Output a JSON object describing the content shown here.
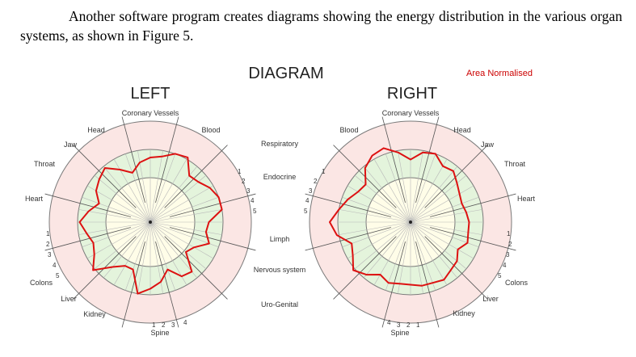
{
  "intro": {
    "text": "Another software program creates diagrams showing the energy distribution in the various organ systems, as shown in Figure 5."
  },
  "figure": {
    "title": "DIAGRAM",
    "note": "Area Normalised",
    "colors": {
      "outer_ring": "#fbe6e4",
      "middle_ring": "#e4f4dc",
      "inner_ring": "#fffde8",
      "grid": "#7a7a7a",
      "trace": "#dd1111",
      "note": "#cc0000"
    },
    "center_labels": [
      "Respiratory",
      "Endocrine",
      "Limph",
      "Nervous system",
      "Uro-Genital"
    ],
    "left": {
      "heading": "LEFT",
      "labels": {
        "top": "Coronary Vessels",
        "head": "Head",
        "blood": "Blood",
        "jaw": "Jaw",
        "throat": "Throat",
        "heart": "Heart",
        "colons": "Colons",
        "liver": "Liver",
        "kidney": "Kidney",
        "spine": "Spine"
      },
      "side_ticks": [
        "1",
        "2",
        "3",
        "4",
        "5"
      ],
      "bottom_ticks": [
        "1",
        "2",
        "3",
        "4"
      ],
      "trace": [
        0.64,
        0.66,
        0.72,
        0.74,
        0.6,
        0.62,
        0.68,
        0.72,
        0.72,
        0.58,
        0.56,
        0.62,
        0.5,
        0.46,
        0.64,
        0.62,
        0.5,
        0.6,
        0.66,
        0.72,
        0.5,
        0.5,
        0.58,
        0.74,
        0.64,
        0.6,
        0.64,
        0.7,
        0.62,
        0.54,
        0.62,
        0.66,
        0.7,
        0.6,
        0.52,
        0.6
      ]
    },
    "right": {
      "heading": "RIGHT",
      "labels": {
        "top": "Coronary Vessels",
        "blood": "Blood",
        "head": "Head",
        "jaw": "Jaw",
        "throat": "Throat",
        "heart": "Heart",
        "colons": "Colons",
        "liver": "Liver",
        "kidney": "Kidney",
        "spine": "Spine"
      },
      "side_ticks": [
        "1",
        "2",
        "3",
        "4",
        "5"
      ],
      "bottom_ticks": [
        "4",
        "3",
        "2",
        "1"
      ],
      "trace": [
        0.62,
        0.7,
        0.72,
        0.64,
        0.66,
        0.6,
        0.56,
        0.54,
        0.56,
        0.58,
        0.58,
        0.6,
        0.54,
        0.6,
        0.62,
        0.66,
        0.64,
        0.64,
        0.62,
        0.62,
        0.64,
        0.6,
        0.68,
        0.74,
        0.66,
        0.62,
        0.74,
        0.8,
        0.72,
        0.66,
        0.6,
        0.58,
        0.7,
        0.76,
        0.78,
        0.7
      ]
    }
  }
}
